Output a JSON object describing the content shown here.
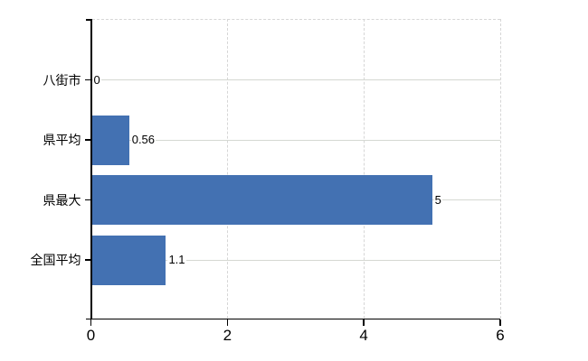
{
  "chart_data": {
    "type": "bar",
    "orientation": "horizontal",
    "title": "",
    "xlabel": "",
    "ylabel": "",
    "categories": [
      "八街市",
      "県平均",
      "県最大",
      "全国平均"
    ],
    "values": [
      0,
      0.56,
      5,
      1.1
    ],
    "value_labels": [
      "0",
      "0.56",
      "5",
      "1.1"
    ],
    "x_ticks": [
      0,
      2,
      4,
      6
    ],
    "x_tick_labels": [
      "0",
      "2",
      "4",
      "6"
    ],
    "xlim": [
      0,
      6
    ],
    "legend": null,
    "grid": "dashed vertical gridlines at x ticks, dashed top border, solid horizontal line through each category row",
    "colors": {
      "bar": "#4371b2",
      "gridline": "#d6d6d6",
      "row_line": "#d5d8d2",
      "axis": "#000000",
      "text": "#000000",
      "background": "#ffffff"
    }
  }
}
